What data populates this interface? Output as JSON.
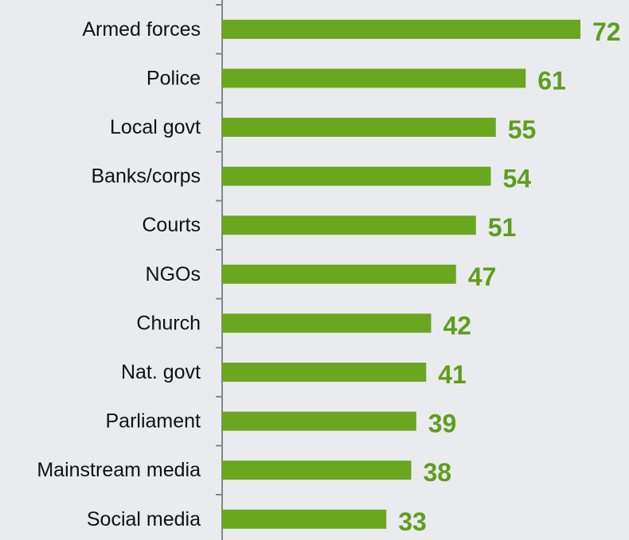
{
  "chart_data": {
    "type": "bar",
    "orientation": "horizontal",
    "categories": [
      "Armed forces",
      "Police",
      "Local govt",
      "Banks/corps",
      "Courts",
      "NGOs",
      "Church",
      "Nat. govt",
      "Parliament",
      "Mainstream media",
      "Social media"
    ],
    "values": [
      72,
      61,
      55,
      54,
      51,
      47,
      42,
      41,
      39,
      38,
      33
    ],
    "data_labels": [
      "72",
      "61",
      "55",
      "54",
      "51",
      "47",
      "42",
      "41",
      "39",
      "38",
      "33"
    ],
    "title": "",
    "xlabel": "",
    "ylabel": "",
    "xlim": [
      0,
      80
    ],
    "grid": false,
    "legend": "none"
  },
  "colors": {
    "background": "#eaebef",
    "bar": "#6aa61e",
    "data_label": "#5f9e1c",
    "axis": "#868686",
    "category_text": "#111111"
  }
}
